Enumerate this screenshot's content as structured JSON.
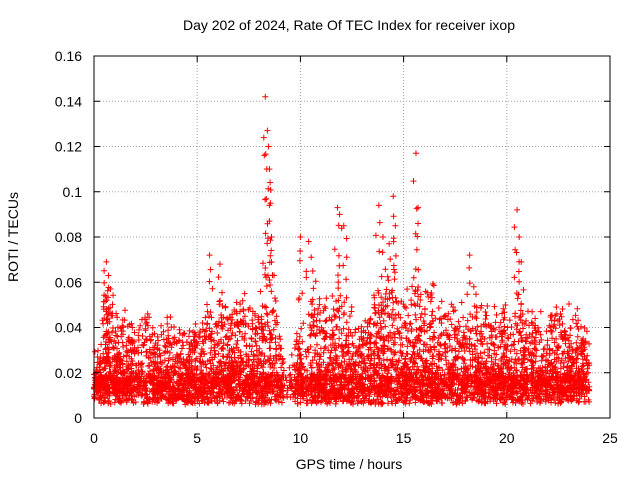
{
  "chart_data": {
    "type": "scatter",
    "title": "Day 202 of 2024, Rate Of TEC Index for receiver ixop",
    "xlabel": "GPS time / hours",
    "ylabel": "ROTI / TECUs",
    "xlim": [
      0,
      25
    ],
    "ylim": [
      0,
      0.16
    ],
    "xticks": [
      "0",
      "5",
      "10",
      "15",
      "20",
      "25"
    ],
    "yticks": [
      "0",
      "0.02",
      "0.04",
      "0.06",
      "0.08",
      "0.1",
      "0.12",
      "0.14",
      "0.16"
    ],
    "grid": true,
    "marker": "+",
    "color": "#ff0000",
    "series": [
      {
        "name": "ROTI",
        "note": "dense cloud of points from 0 to ~24 h, baseline ~0.005-0.03 TECUs; notable peaks listed",
        "x": [
          0.6,
          0.7,
          0.8,
          2.6,
          4.8,
          5.5,
          5.6,
          6.1,
          7.3,
          8.3,
          8.4,
          8.45,
          8.5,
          8.55,
          8.6,
          10.0,
          10.4,
          10.6,
          11.8,
          11.9,
          12.1,
          13.8,
          14.0,
          14.3,
          14.5,
          14.6,
          15.6,
          15.7,
          18.2,
          18.4,
          20.5,
          20.6,
          20.7,
          22.4,
          22.6,
          23.7
        ],
        "y": [
          0.069,
          0.063,
          0.057,
          0.046,
          0.038,
          0.047,
          0.072,
          0.068,
          0.055,
          0.142,
          0.127,
          0.12,
          0.11,
          0.095,
          0.08,
          0.08,
          0.078,
          0.065,
          0.093,
          0.09,
          0.085,
          0.094,
          0.08,
          0.077,
          0.098,
          0.085,
          0.117,
          0.093,
          0.072,
          0.058,
          0.092,
          0.08,
          0.069,
          0.049,
          0.046,
          0.035
        ]
      }
    ]
  }
}
